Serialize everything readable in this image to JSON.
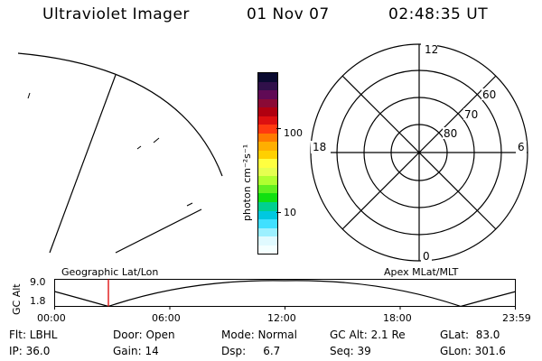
{
  "header": {
    "title": "Ultraviolet Imager",
    "date": "01 Nov 07",
    "time": "02:48:35 UT"
  },
  "colorbar": {
    "unit_label": "photon cm⁻²s⁻¹",
    "tick_100": "100",
    "tick_10": "10",
    "colors": [
      "#0a0a30",
      "#30104a",
      "#600a55",
      "#8a0a35",
      "#b00010",
      "#dd1010",
      "#ff3a10",
      "#ff7a00",
      "#ffae00",
      "#ffd000",
      "#ffff40",
      "#e6ff50",
      "#b0ff30",
      "#60f020",
      "#10e010",
      "#00d090",
      "#00c8e0",
      "#40e0ff",
      "#9cf0ff",
      "#e0faff",
      "#f4ffff"
    ]
  },
  "polar_plot": {
    "mlt_labels": {
      "top": "12",
      "left": "18",
      "right": "6",
      "bottom": "0"
    },
    "lat_labels": [
      "60",
      "70",
      "80"
    ]
  },
  "timeline": {
    "left_label": "Geographic Lat/Lon",
    "right_label": "Apex MLat/MLT",
    "axis_title": "GC Alt",
    "y_ticks": [
      "9.0",
      "1.8"
    ],
    "x_ticks": [
      "00:00",
      "06:00",
      "12:00",
      "18:00",
      "23:59"
    ],
    "marker_color": "#dd0000"
  },
  "footer": {
    "flt": "Flt: LBHL",
    "door": "Door: Open",
    "mode": "Mode: Normal",
    "gcalt": "GC Alt: 2.1 Re",
    "glat": "GLat:  83.0",
    "ip": "IP: 36.0",
    "gain": "Gain: 14",
    "dsp": "Dsp:     6.7",
    "seq": "Seq: 39",
    "glon": "GLon: 301.6"
  }
}
